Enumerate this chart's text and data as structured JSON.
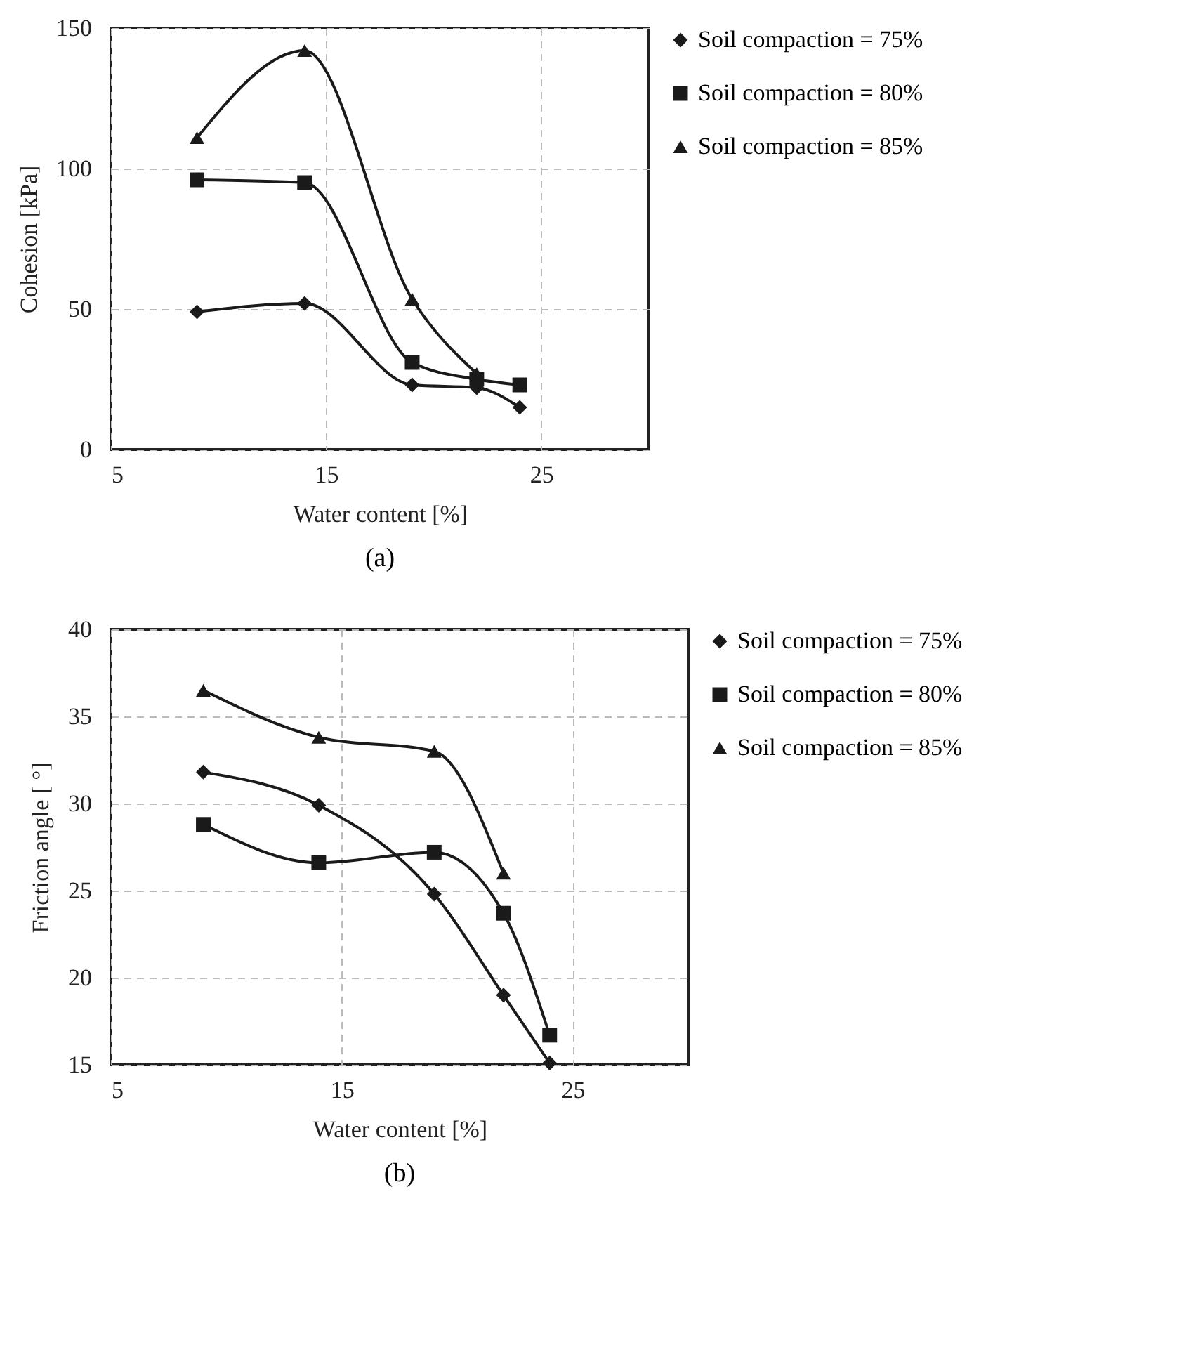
{
  "chart_data": [
    {
      "type": "line",
      "title": "(a)",
      "xlabel": "Water content  [%]",
      "ylabel": "Cohesion  [kPa]",
      "xlim": [
        5,
        30
      ],
      "xticks": [
        5,
        15,
        25
      ],
      "ylim": [
        0,
        150
      ],
      "yticks": [
        0,
        50,
        100,
        150
      ],
      "grid": true,
      "legend": "right",
      "x": [
        9,
        14,
        19,
        22,
        24
      ],
      "series": [
        {
          "name": "Soil compaction = 75%",
          "color": "#1a1a1a",
          "marker": "diamond",
          "values": [
            49,
            52,
            23,
            22,
            15
          ]
        },
        {
          "name": "Soil compaction = 80%",
          "color": "#1a1a1a",
          "marker": "square",
          "values": [
            96,
            95,
            31,
            25,
            23
          ]
        },
        {
          "name": "Soil compaction = 85%",
          "color": "#1a1a1a",
          "marker": "triangle",
          "x": [
            9,
            14,
            19,
            22
          ],
          "values": [
            111,
            142,
            53.5,
            27
          ]
        }
      ]
    },
    {
      "type": "line",
      "title": "(b)",
      "xlabel": "Water content  [%]",
      "ylabel": "Friction angle [ °]",
      "xlim": [
        5,
        30
      ],
      "xticks": [
        5,
        15,
        25
      ],
      "ylim": [
        15,
        40
      ],
      "yticks": [
        15,
        20,
        25,
        30,
        35,
        40
      ],
      "grid": true,
      "legend": "right",
      "x": [
        9,
        14,
        19,
        22,
        24
      ],
      "series": [
        {
          "name": "Soil compaction = 75%",
          "color": "#1a1a1a",
          "marker": "diamond",
          "values": [
            31.8,
            29.9,
            24.8,
            19.0,
            15.1
          ]
        },
        {
          "name": "Soil compaction = 80%",
          "color": "#1a1a1a",
          "marker": "square",
          "values": [
            28.8,
            26.6,
            27.2,
            23.7,
            16.7
          ]
        },
        {
          "name": "Soil compaction = 85%",
          "color": "#1a1a1a",
          "marker": "triangle",
          "x": [
            9,
            14,
            19,
            22
          ],
          "values": [
            36.5,
            33.8,
            33.0,
            26.0
          ]
        }
      ]
    }
  ]
}
